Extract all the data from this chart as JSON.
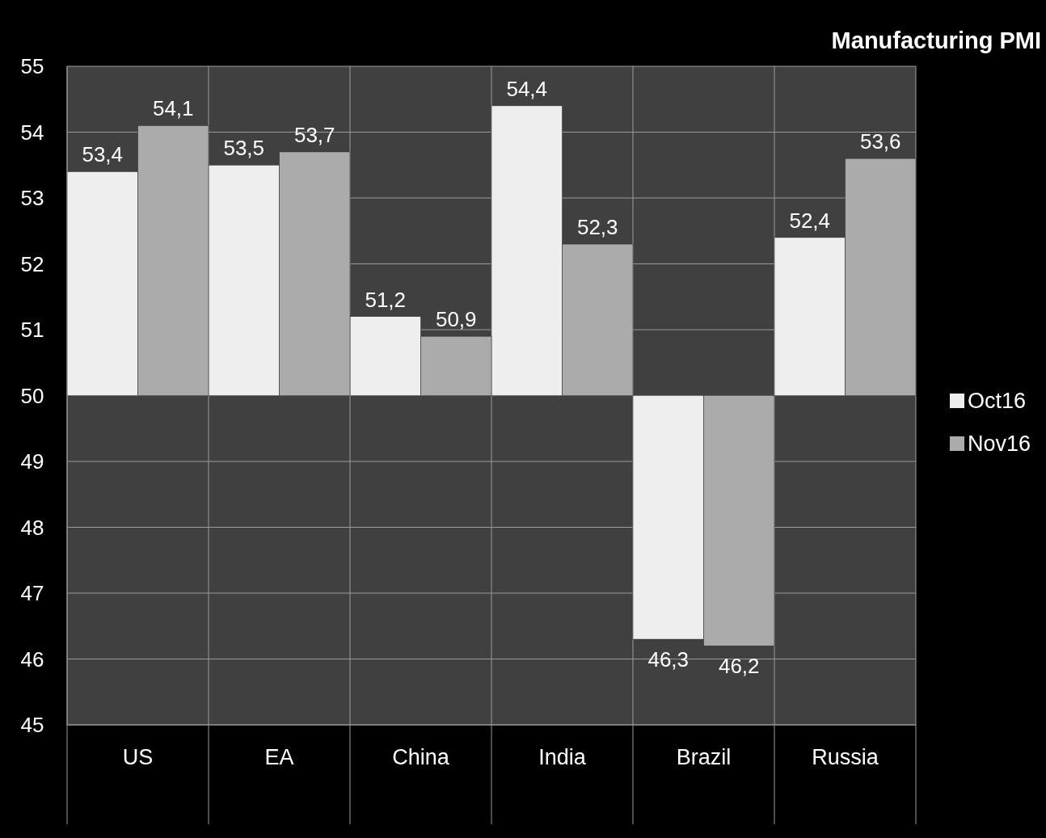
{
  "chart_data": {
    "type": "bar",
    "title": "Manufacturing PMI",
    "categories": [
      "US",
      "EA",
      "China",
      "India",
      "Brazil",
      "Russia"
    ],
    "series": [
      {
        "name": "Oct16",
        "color": "#eeeeee",
        "base": [
          50,
          50,
          50,
          50,
          50,
          50
        ],
        "values": [
          3.4,
          3.5,
          1.2,
          4.4,
          -3.7,
          2.4
        ],
        "value_labels": [
          "53,4",
          "53,5",
          "51,2",
          "54,4",
          "46,3",
          "52,4"
        ]
      },
      {
        "name": "Nov16",
        "color": "#ababab",
        "base": [
          50,
          50,
          50,
          50,
          50,
          50
        ],
        "values": [
          4.1,
          3.7,
          0.9,
          2.3,
          -3.8,
          3.6
        ],
        "value_labels": [
          "54,1",
          "53,7",
          "50,9",
          "52,3",
          "46,2",
          "53,6"
        ]
      }
    ],
    "ylim": [
      45,
      55
    ],
    "yticks": [
      45,
      46,
      47,
      48,
      49,
      50,
      51,
      52,
      53,
      54,
      55
    ],
    "grid": true,
    "legend": "right"
  }
}
